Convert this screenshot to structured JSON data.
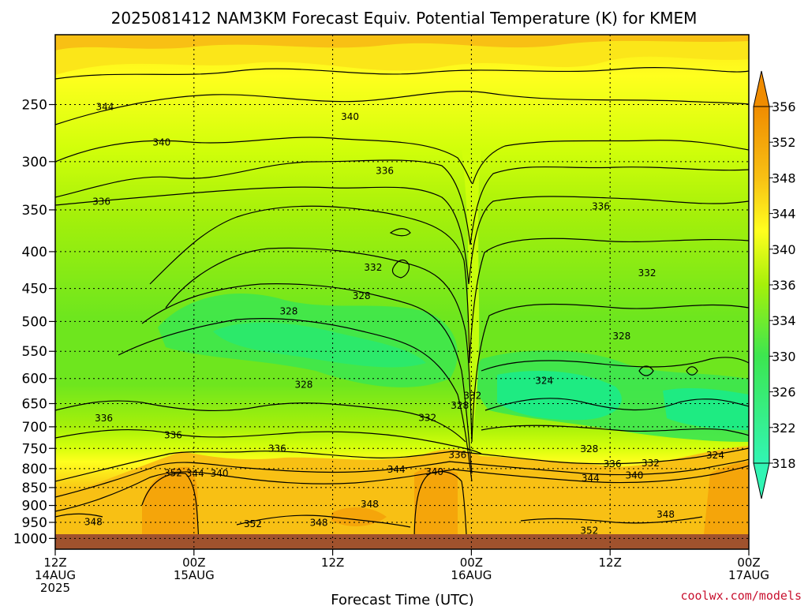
{
  "header": {
    "title": "2025081412 NAM3KM Forecast Equiv. Potential Temperature (K) for KMEM",
    "credit": "coolwx.com/models"
  },
  "chart_data": {
    "type": "heatmap",
    "title": "2025081412 NAM3KM Forecast Equiv. Potential Temperature (K) for KMEM",
    "xlabel": "Forecast Time (UTC)",
    "ylabel": "",
    "y_scale": "log",
    "y_reversed": true,
    "ylim": [
      1035,
      200
    ],
    "xlim": [
      0,
      36
    ],
    "y_ticks": [
      250,
      300,
      350,
      400,
      450,
      500,
      550,
      600,
      650,
      700,
      750,
      800,
      850,
      900,
      950,
      1000
    ],
    "x_ticks": [
      {
        "hour": 0,
        "lines": [
          "12Z",
          "14AUG",
          "2025"
        ]
      },
      {
        "hour": 12,
        "lines": [
          "00Z",
          "15AUG"
        ]
      },
      {
        "hour": 24,
        "lines": [
          "12Z"
        ]
      },
      {
        "hour": 36,
        "lines": [
          "00Z",
          "16AUG"
        ]
      },
      {
        "hour": 48,
        "lines": [
          "12Z"
        ]
      },
      {
        "hour": 60,
        "lines": [
          "00Z",
          "17AUG"
        ]
      }
    ],
    "x_hours_max": 60,
    "grid": true,
    "colorbar": {
      "ticks": [
        356,
        352,
        348,
        344,
        340,
        336,
        334,
        330,
        326,
        322,
        318
      ],
      "colors": [
        "#f08c00",
        "#f5a50a",
        "#f8c014",
        "#fbe619",
        "#ffff1e",
        "#d2ff0a",
        "#a5f00a",
        "#6ee61e",
        "#3ce650",
        "#1eeb82",
        "#32f5b4"
      ],
      "extend": "both"
    },
    "pressure_levels": [
      250,
      300,
      350,
      400,
      450,
      500,
      550,
      600,
      650,
      700,
      750,
      800,
      850,
      900,
      950,
      1000
    ],
    "contour_labels": [
      {
        "t": 4.3,
        "p": 252,
        "v": "344"
      },
      {
        "t": 25.5,
        "p": 260,
        "v": "340"
      },
      {
        "t": 9.2,
        "p": 282,
        "v": "340"
      },
      {
        "t": 28.5,
        "p": 309,
        "v": "336"
      },
      {
        "t": 4.0,
        "p": 341,
        "v": "336"
      },
      {
        "t": 47.2,
        "p": 346,
        "v": "336"
      },
      {
        "t": 27.5,
        "p": 421,
        "v": "332"
      },
      {
        "t": 51.2,
        "p": 428,
        "v": "332"
      },
      {
        "t": 26.5,
        "p": 461,
        "v": "328"
      },
      {
        "t": 20.2,
        "p": 484,
        "v": "328"
      },
      {
        "t": 49.0,
        "p": 524,
        "v": "328"
      },
      {
        "t": 42.3,
        "p": 604,
        "v": "324"
      },
      {
        "t": 21.5,
        "p": 612,
        "v": "328"
      },
      {
        "t": 36.1,
        "p": 634,
        "v": "332"
      },
      {
        "t": 35.0,
        "p": 654,
        "v": "328"
      },
      {
        "t": 32.2,
        "p": 680,
        "v": "332"
      },
      {
        "t": 4.2,
        "p": 681,
        "v": "336"
      },
      {
        "t": 10.2,
        "p": 719,
        "v": "336"
      },
      {
        "t": 19.2,
        "p": 750,
        "v": "336"
      },
      {
        "t": 46.2,
        "p": 751,
        "v": "328"
      },
      {
        "t": 34.8,
        "p": 766,
        "v": "336"
      },
      {
        "t": 57.1,
        "p": 767,
        "v": "324"
      },
      {
        "t": 48.2,
        "p": 788,
        "v": "336"
      },
      {
        "t": 51.5,
        "p": 786,
        "v": "332"
      },
      {
        "t": 29.5,
        "p": 802,
        "v": "344"
      },
      {
        "t": 32.8,
        "p": 808,
        "v": "340"
      },
      {
        "t": 10.2,
        "p": 811,
        "v": "352"
      },
      {
        "t": 12.1,
        "p": 813,
        "v": "344"
      },
      {
        "t": 14.2,
        "p": 813,
        "v": "340"
      },
      {
        "t": 50.1,
        "p": 818,
        "v": "340"
      },
      {
        "t": 46.3,
        "p": 825,
        "v": "344"
      },
      {
        "t": 27.2,
        "p": 897,
        "v": "348"
      },
      {
        "t": 52.8,
        "p": 926,
        "v": "348"
      },
      {
        "t": 3.3,
        "p": 949,
        "v": "348"
      },
      {
        "t": 22.8,
        "p": 951,
        "v": "348"
      },
      {
        "t": 17.1,
        "p": 955,
        "v": "352"
      },
      {
        "t": 46.2,
        "p": 975,
        "v": "352"
      }
    ]
  }
}
